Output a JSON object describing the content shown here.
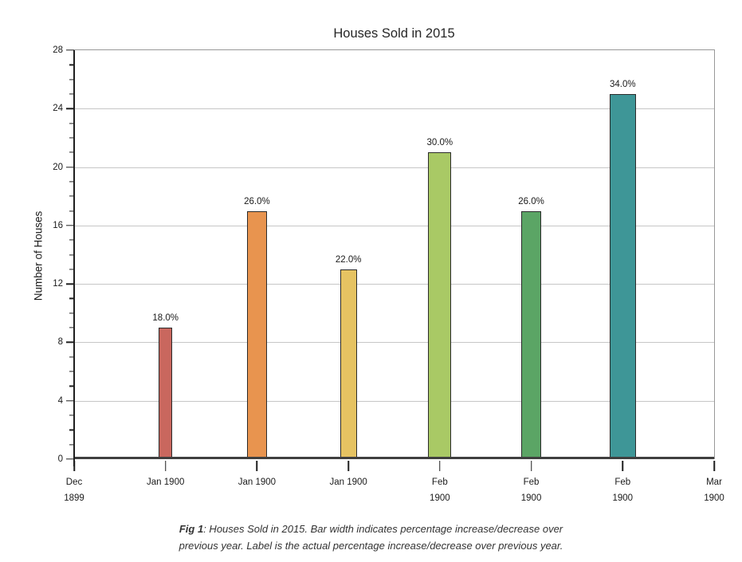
{
  "chart_data": {
    "type": "bar",
    "title": "Houses Sold in 2015",
    "ylabel": "Number of Houses",
    "xlabel": "",
    "ylim": [
      0,
      28
    ],
    "ytick_step": 4,
    "y_minor_tick_step": 1,
    "grid": true,
    "legend": false,
    "x_axis_ticks": [
      {
        "lines": [
          "Dec",
          "1899"
        ]
      },
      {
        "lines": [
          "Jan 1900"
        ]
      },
      {
        "lines": [
          "Jan 1900"
        ]
      },
      {
        "lines": [
          "Jan 1900"
        ]
      },
      {
        "lines": [
          "Feb",
          "1900"
        ]
      },
      {
        "lines": [
          "Feb",
          "1900"
        ]
      },
      {
        "lines": [
          "Feb",
          "1900"
        ]
      },
      {
        "lines": [
          "Mar",
          "1900"
        ]
      }
    ],
    "categories": [
      "Jan 1900",
      "Jan 1900",
      "Jan 1900",
      "Feb 1900",
      "Feb 1900",
      "Feb 1900"
    ],
    "values": [
      9,
      17,
      13,
      21,
      17,
      25
    ],
    "bars": [
      {
        "tick_index": 1,
        "value": 9,
        "label": "18.0%",
        "pct": 18,
        "color": "#C9675E"
      },
      {
        "tick_index": 2,
        "value": 17,
        "label": "26.0%",
        "pct": 26,
        "color": "#E8944F"
      },
      {
        "tick_index": 3,
        "value": 13,
        "label": "22.0%",
        "pct": 22,
        "color": "#E6C362"
      },
      {
        "tick_index": 4,
        "value": 21,
        "label": "30.0%",
        "pct": 30,
        "color": "#A9C965"
      },
      {
        "tick_index": 5,
        "value": 17,
        "label": "26.0%",
        "pct": 26,
        "color": "#5BA565"
      },
      {
        "tick_index": 6,
        "value": 25,
        "label": "34.0%",
        "pct": 34,
        "color": "#3E9697"
      }
    ],
    "caption": {
      "fig_label": "Fig 1",
      "line1": ": Houses Sold in 2015. Bar width indicates percentage increase/decrease over",
      "line2": "previous year. Label is the actual percentage increase/decrease over previous year."
    }
  }
}
